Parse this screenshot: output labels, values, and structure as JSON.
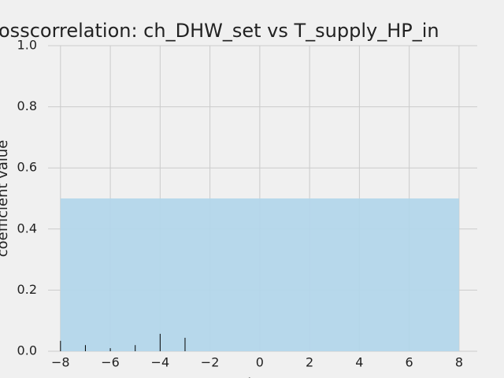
{
  "chart_data": {
    "type": "stem",
    "title": "osscorrelation: ch_DHW_set vs T_supply_HP_in",
    "xlabel": "lag",
    "ylabel": "coefficient value",
    "x": [
      -8,
      -7,
      -6,
      -5,
      -4,
      -3,
      -2,
      -1,
      0,
      1,
      2,
      3,
      4,
      5,
      6,
      7,
      8
    ],
    "values": [
      0.034,
      0.02,
      0.01,
      0.02,
      0.057,
      0.044,
      0,
      0,
      0,
      0,
      0,
      0,
      0,
      0,
      0,
      0,
      0
    ],
    "color": "#000000",
    "band": {
      "x": [
        -8,
        8
      ],
      "value": 0.5,
      "color": "#b3d6ea"
    },
    "xlim": [
      -8.5,
      8.73
    ],
    "ylim": [
      0,
      1
    ],
    "xticks": [
      {
        "value": -8,
        "label": "−8"
      },
      {
        "value": -6,
        "label": "−6"
      },
      {
        "value": -4,
        "label": "−4"
      },
      {
        "value": -2,
        "label": "−2"
      },
      0,
      2,
      4,
      6,
      8
    ],
    "yticks": [
      {
        "value": 0,
        "label": "0.0"
      },
      0.2,
      0.4,
      0.6,
      0.8,
      {
        "value": 1,
        "label": "1.0"
      }
    ],
    "grid": true
  }
}
